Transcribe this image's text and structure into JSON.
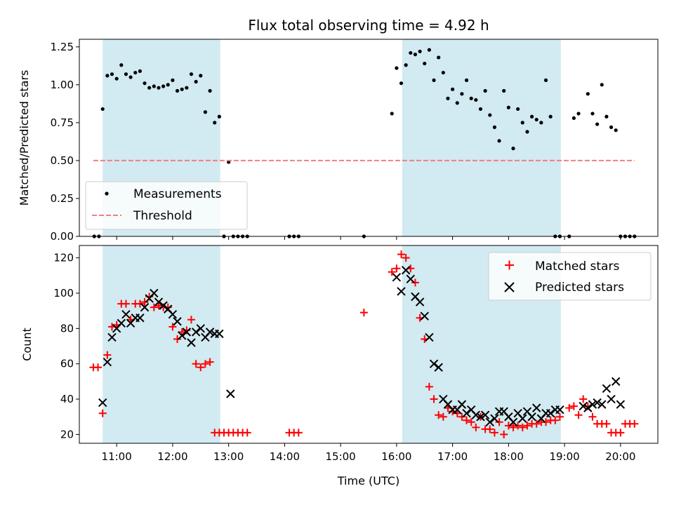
{
  "chart_data": [
    {
      "type": "scatter",
      "title": "Flux total observing time = 4.92 h",
      "xlabel": "",
      "ylabel": "Matched/Predicted stars",
      "xlim": [
        "10:20",
        "20:40"
      ],
      "ylim": [
        0.0,
        1.3
      ],
      "yticks": [
        0.0,
        0.25,
        0.5,
        0.75,
        1.0,
        1.25
      ],
      "ytick_labels": [
        "0.00",
        "0.25",
        "0.50",
        "0.75",
        "1.00",
        "1.25"
      ],
      "xticks": [
        "11:00",
        "12:00",
        "13:00",
        "14:00",
        "15:00",
        "16:00",
        "17:00",
        "18:00",
        "19:00",
        "20:00"
      ],
      "grid": false,
      "legend_position": "lower-left",
      "shaded_spans": [
        {
          "start": "10:45",
          "end": "12:51",
          "color": "#add8e6"
        },
        {
          "start": "16:06",
          "end": "18:56",
          "color": "#add8e6"
        }
      ],
      "series": [
        {
          "name": "Measurements",
          "marker": "dot",
          "color": "#000000",
          "x": [
            "10:36",
            "10:41",
            "10:45",
            "10:50",
            "10:55",
            "11:00",
            "11:05",
            "11:10",
            "11:15",
            "11:20",
            "11:25",
            "11:30",
            "11:35",
            "11:40",
            "11:45",
            "11:50",
            "11:55",
            "12:00",
            "12:05",
            "12:10",
            "12:15",
            "12:20",
            "12:25",
            "12:30",
            "12:35",
            "12:40",
            "12:45",
            "12:50",
            "12:55",
            "13:00",
            "13:05",
            "13:10",
            "13:15",
            "13:20",
            "14:05",
            "14:10",
            "14:15",
            "15:25",
            "15:55",
            "16:00",
            "16:05",
            "16:10",
            "16:15",
            "16:20",
            "16:25",
            "16:30",
            "16:35",
            "16:40",
            "16:45",
            "16:50",
            "16:55",
            "17:00",
            "17:05",
            "17:10",
            "17:15",
            "17:20",
            "17:25",
            "17:30",
            "17:35",
            "17:40",
            "17:45",
            "17:50",
            "17:55",
            "18:00",
            "18:05",
            "18:10",
            "18:15",
            "18:20",
            "18:25",
            "18:30",
            "18:35",
            "18:40",
            "18:45",
            "18:50",
            "18:55",
            "19:05",
            "19:10",
            "19:15",
            "19:25",
            "19:30",
            "19:35",
            "19:40",
            "19:45",
            "19:50",
            "19:55",
            "20:00",
            "20:05",
            "20:10",
            "20:15"
          ],
          "y": [
            0,
            0,
            0.84,
            1.06,
            1.07,
            1.04,
            1.13,
            1.07,
            1.05,
            1.08,
            1.09,
            1.01,
            0.98,
            0.99,
            0.98,
            0.99,
            1.0,
            1.03,
            0.96,
            0.97,
            0.98,
            1.07,
            1.02,
            1.06,
            0.82,
            0.96,
            0.75,
            0.79,
            0,
            0.49,
            0,
            0,
            0,
            0,
            0,
            0,
            0,
            0,
            0.81,
            1.11,
            1.01,
            1.13,
            1.21,
            1.2,
            1.22,
            1.14,
            1.23,
            1.03,
            1.18,
            1.08,
            0.91,
            0.97,
            0.88,
            0.94,
            1.03,
            0.91,
            0.9,
            0.84,
            0.96,
            0.8,
            0.72,
            0.63,
            0.96,
            0.85,
            0.58,
            0.84,
            0.75,
            0.69,
            0.79,
            0.77,
            0.75,
            1.03,
            0.79,
            0,
            0,
            0,
            0.78,
            0.81,
            0.94,
            0.81,
            0.74,
            1.0,
            0.79,
            0.72,
            0.7,
            0,
            0,
            0,
            0
          ]
        },
        {
          "name": "Threshold",
          "style": "dashed",
          "color": "#f08080",
          "x": [
            "10:35",
            "20:15"
          ],
          "y": [
            0.5,
            0.5
          ]
        }
      ]
    },
    {
      "type": "scatter",
      "title": "",
      "xlabel": "Time (UTC)",
      "ylabel": "Count",
      "xlim": [
        "10:20",
        "20:40"
      ],
      "ylim": [
        15,
        127
      ],
      "yticks": [
        20,
        40,
        60,
        80,
        100,
        120
      ],
      "ytick_labels": [
        "20",
        "40",
        "60",
        "80",
        "100",
        "120"
      ],
      "xticks": [
        "11:00",
        "12:00",
        "13:00",
        "14:00",
        "15:00",
        "16:00",
        "17:00",
        "18:00",
        "19:00",
        "20:00"
      ],
      "grid": false,
      "legend_position": "top-right",
      "shaded_spans": [
        {
          "start": "10:45",
          "end": "12:51",
          "color": "#add8e6"
        },
        {
          "start": "16:06",
          "end": "18:56",
          "color": "#add8e6"
        }
      ],
      "series": [
        {
          "name": "Matched stars",
          "marker": "plus",
          "color": "#ff0000",
          "x": [
            "10:35",
            "10:40",
            "10:45",
            "10:50",
            "10:55",
            "11:00",
            "11:05",
            "11:10",
            "11:15",
            "11:20",
            "11:25",
            "11:30",
            "11:35",
            "11:40",
            "11:45",
            "11:50",
            "11:55",
            "12:00",
            "12:05",
            "12:10",
            "12:15",
            "12:20",
            "12:25",
            "12:30",
            "12:35",
            "12:40",
            "12:45",
            "12:50",
            "12:55",
            "13:00",
            "13:05",
            "13:10",
            "13:15",
            "13:20",
            "14:05",
            "14:10",
            "14:15",
            "15:25",
            "15:55",
            "16:00",
            "16:05",
            "16:10",
            "16:15",
            "16:20",
            "16:25",
            "16:30",
            "16:35",
            "16:40",
            "16:45",
            "16:50",
            "16:55",
            "17:00",
            "17:05",
            "17:10",
            "17:15",
            "17:20",
            "17:25",
            "17:30",
            "17:35",
            "17:40",
            "17:45",
            "17:50",
            "17:55",
            "18:00",
            "18:05",
            "18:10",
            "18:15",
            "18:20",
            "18:25",
            "18:30",
            "18:35",
            "18:40",
            "18:45",
            "18:50",
            "18:55",
            "19:05",
            "19:10",
            "19:15",
            "19:20",
            "19:25",
            "19:30",
            "19:35",
            "19:40",
            "19:45",
            "19:50",
            "19:55",
            "20:00",
            "20:05",
            "20:10",
            "20:15"
          ],
          "y": [
            58,
            58,
            32,
            65,
            81,
            82,
            94,
            94,
            85,
            94,
            94,
            95,
            98,
            92,
            93,
            92,
            92,
            81,
            74,
            78,
            79,
            85,
            60,
            58,
            60,
            61,
            21,
            21,
            21,
            21,
            21,
            21,
            21,
            21,
            21,
            21,
            21,
            89,
            112,
            114,
            122,
            120,
            114,
            106,
            86,
            74,
            47,
            40,
            31,
            30,
            35,
            33,
            32,
            30,
            28,
            27,
            24,
            30,
            23,
            23,
            21,
            27,
            20,
            25,
            24,
            25,
            24,
            25,
            26,
            26,
            27,
            27,
            28,
            28,
            30,
            35,
            36,
            31,
            40,
            36,
            30,
            26,
            26,
            26,
            21,
            21,
            21,
            26,
            26,
            26
          ]
        },
        {
          "name": "Predicted stars",
          "marker": "x",
          "color": "#000000",
          "x": [
            "10:45",
            "10:50",
            "10:55",
            "11:00",
            "11:05",
            "11:10",
            "11:15",
            "11:20",
            "11:25",
            "11:30",
            "11:35",
            "11:40",
            "11:45",
            "11:50",
            "11:55",
            "12:00",
            "12:05",
            "12:10",
            "12:15",
            "12:20",
            "12:25",
            "12:30",
            "12:35",
            "12:40",
            "12:45",
            "12:50",
            "13:02",
            "16:00",
            "16:05",
            "16:10",
            "16:15",
            "16:20",
            "16:25",
            "16:30",
            "16:35",
            "16:40",
            "16:45",
            "16:50",
            "16:55",
            "17:00",
            "17:05",
            "17:10",
            "17:15",
            "17:20",
            "17:25",
            "17:30",
            "17:35",
            "17:40",
            "17:45",
            "17:50",
            "17:55",
            "18:00",
            "18:05",
            "18:10",
            "18:15",
            "18:20",
            "18:25",
            "18:30",
            "18:35",
            "18:40",
            "18:45",
            "18:50",
            "18:55",
            "19:20",
            "19:25",
            "19:30",
            "19:35",
            "19:40",
            "19:45",
            "19:50",
            "19:55",
            "20:00"
          ],
          "y": [
            38,
            61,
            75,
            80,
            83,
            88,
            83,
            86,
            86,
            92,
            97,
            100,
            95,
            93,
            91,
            88,
            84,
            76,
            78,
            72,
            78,
            80,
            75,
            78,
            77,
            77,
            43,
            109,
            101,
            113,
            108,
            98,
            95,
            87,
            75,
            60,
            58,
            40,
            37,
            34,
            34,
            37,
            32,
            34,
            31,
            30,
            31,
            27,
            29,
            33,
            33,
            30,
            27,
            32,
            29,
            33,
            30,
            35,
            29,
            32,
            32,
            34,
            34,
            36,
            35,
            37,
            38,
            37,
            46,
            40,
            50,
            37
          ]
        }
      ]
    }
  ]
}
